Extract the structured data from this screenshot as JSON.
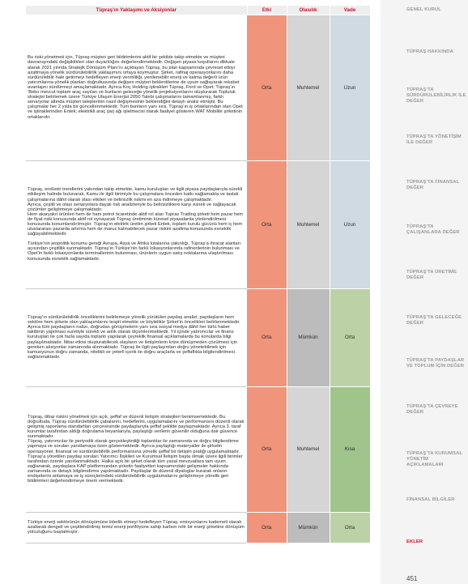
{
  "table": {
    "headers": {
      "approach": "Tüpraş’ın Yaklaşımı ve Aksiyonlar",
      "impact": "Etki",
      "likelihood": "Olasılık",
      "term": "Vade"
    },
    "rows": [
      {
        "paragraphs": [
          "Bu riski yönetmek için, Tüpraş müşteri geri bildirimlerini aktif bir şekilde takip etmekte ve müşteri davranışındaki değişiklikleri olan duyarlılığını değerlendirmektedir. Değişen piyasa koşullarını dikkate alarak 2021 yılında Stratejik Dönüşüm Planı’nı açıklayan Tüpraş, bu plan kapsamında çevresel etkiyi azaltmaya yönelik sürdürülebilirlik yaklaşımını ortaya koymuştur. Şirket, rafinaj operasyonlarını daha sürdürülebilir hale getirmeyi hedefleyen enerji verimliliği, yenilenebilir enerji ve katma değerli ürün yatırımlarına yönelik planları doğrultusunda değişen müşteri beklentilerine de uyum sağlayarak rekabet avantajını sürdürmeyi amaçlamaktadır. Ayrıca Koç Holding iştirakleri Tüpraş, Ford ve Opet; Tüpraş’ın ‘Beko mevcut toplam araç sayıları ve bunların geleceğe yönelik projeksiyonlarını oluşturarak Topluluk stratejisi belirlemek üzere Türkiye Ulaşım Enerjisi 2050 Talebi çalışmalarını tamamlanmış, farklı senaryolar altında müşteri taleplerinin nasıl değişmesinin beklendiğini detaylı analiz etmiştir. Bu çalışmalar her 2 yılda bir güncellenmektedir. Tüm bunların yanı sıra, Tüpraş’ın iş ortaklarından olan Opet ve iştiraklerinden Entek; elektrikli araç şarj ağı işletmecisi olarak faaliyet gösteren WAT Mobilite şirketinin ortaklarıdır."
        ],
        "impact": "Orta",
        "likelihood": "Muhtemel",
        "term": "Uzun"
      },
      {
        "paragraphs": [
          "Tüpraş, endüstri trendlerini yakından takip etmekte, kamu kuruluşları ve ilgili piyasa paydaşlarıyla sürekli etkileşim halinde bulunarak, Kamu ile ilgili birimiyle bu çalışmalara önceden katkı sağlamakta ve taslak çalışmalarına dâhil olarak olası etkileri ve belirsizlik riskini en aza indirmeye çalışmaktadır.",
          "Ayrıca, çeşitli ve olası senaryolara dayalı risk analizleriyle bu belirsizliklere karşı esnek ve sağlayacak çözümler geliştirmeye çalışmaktadır.",
          "Hem akaryakıt ürünleri hem de ham petrol ticaretinde aktif rol alan Tupras Trading şirketi hem pazar hem de fiyat riski konusunda aktif rol oynayarak Tüpraş üretiminin küresel piyasalarda yönlendirilmesi konusunda konumlandırılmıştır. Tüpraş’ın elektrik üretim şirketi Entek, toplam kurulu gücünü hem iç hem uluslararası pazarda artırma hem de maruz kalınabilecek pazar riskini azaltma konusunda esneklik sağlayabilmektedir.",
          "Türkiye’nin jeopolitik konumu gereği Avrupa, Asya ve Afrika kıtalarına yakınlığı, Tüpraş’a ihracat alanları açısından çeşitlilik sunmaktadır. Tüpraş’ın Türkiye’nin farklı lokasyonlarında rafinerilerinin bulunması ve Opet’in farklı lokasyonlarda terminallerinin bulunması, ürünlerin uygun satış noktalarına ulaştırılması konusunda esneklik sağlamaktadır."
        ],
        "impact": "Orta",
        "likelihood": "Muhtemel",
        "term": "Uzun"
      },
      {
        "paragraphs": [
          "Tüpraş’ın sürdürülebilirlik önceliklerini belirlemeye yönelik yürütülen paydaş analizi; paydaşların hem sektöre hem şirkete olan yaklaşımlarını tespit etmekte ve böylelikle Şirket’in öncelikleri belirlenmektedir. Ayrıca tüm paydaşların nabzı, doğrudan görüşmelerin yanı sıra sosyal medya dâhil her türlü haber takibinin yapılması suretiyle sürekli ve anlık olarak ölçümlenmektedir. Yıl içinde yatırımcılar ve finans kuruluşları ile çok fazla sayıda toplantı yapılarak çeyreklik finansal açıklamalarda bu konularda bilgi paylaşılmaktadır. İtibar etkisi oluşturabilecek olayların ve iletişimlerin krize dönüşmeden çözülmesi için gereken aksiyonlar zamanında alınmaktadır. Tüpraş ile ilgili paylaşımları doğru yönetebilmek için kamuoyunun doğru zamanda, nitelikli ve yeterli içerik ile doğru araçlarla ve şeffaflıkla bilgilendirilmesi sağlanmaktadır."
        ],
        "impact": "Orta",
        "likelihood": "Mümkün",
        "term": "Orta"
      },
      {
        "paragraphs": [
          "Tüpraş, itibar riskini yönetmek için açık, şeffaf ve düzenli iletişim stratejileri benimsemektedir. Bu doğrultuda, Tüpraş sürdürülebilirlik çabalarını, hedeflerini, uygulamalarını ve performansını düzenli olarak gelişmiş raporlama standartları çerçevesinde paydaşlarıyla şeffaf şekilde paylaşmaktadır. Ayrıca 3. taraf kurumlar tarafından aldığı doğrulama beyanlarıyla, paylaştığı verilerin güvenilir olduğuna dair güvence sunmaktadır.",
          "Tüpraş, yatırımcılar ile periyodik olarak gerçekleştirdiği toplantılar ile zamanında ve doğru bilgilendirme yapmaya ve soruları yanıtlamaya özen göstermektedir. Ayrıca paylaştığı materyaller ile şirketin operasyonel, finansal ve sürdürülebilirlik performansına yönelik şeffaf bir iletişim pratiği uygulamaktadır. Tüpraş’a yönetilen paydaş soruları Yatırımcı İlişkileri ve Kurumsal İletişim başta olmak üzere ilgili birimler tarafından özenle yanıtlanmaktadır. Halka açık bir şirket olarak tüm yasal mevzuatlara tam uyum sağlanarak, paydaşlara KAP platformundan şirketin faaliyetleri kapsamındaki gelişmeler hakkında zamanında ve detaylı bilgilendirme yapılmaktadır. Paydaşlar ile düzenli diyaloglar kurarak onların endişelerini anlamaya ve iş süreçlerindeki sürdürülebilirlik uygulamalarını geliştirmeye yönelik geri bildirimleri değerlendirmeye önem vermektedir."
        ],
        "impact": "Orta",
        "likelihood": "Muhtemel",
        "term": "Kısa"
      },
      {
        "paragraphs": [
          "Türkiye enerji sektörünün dönüşümüne liderlik etmeyi hedefleyen Tüpraş; emisyonlarını kademeli olarak azaltarak dengeli ve çeşitlendirilmiş temiz enerji portföyüne sahip karbon nötr bir enerji şirketine dönüşüm yolculuğunu başlatmıştır."
        ],
        "impact": "Orta",
        "likelihood": "Mümkün",
        "term": "Orta"
      }
    ]
  },
  "sidebar": {
    "items": [
      "GENEL KURUL",
      "TÜPRAŞ HAKKINDA",
      "TÜPRAŞ’TA SÜRDÜRÜLEBİLİRLİK İLE DEĞER",
      "TÜPRAŞ’TA YÖNETİŞİM İLE DEĞER",
      "TÜPRAŞ’TA FİNANSAL DEĞER",
      "TÜPRAŞ’TA ÇALIŞANLARA DEĞER",
      "TÜPRAŞ’TA ÜRETİME DEĞER",
      "TÜPRAŞ’TA GELECEĞE DEĞER",
      "TÜPRAŞ’TA PAYDAŞLAR VE TOPLUM İÇİN DEĞER",
      "TÜPRAŞ’TA ÇEVREYE DEĞER",
      "TÜPRAŞ’TA KURUMSAL YÖNETİM AÇIKLAMALARI",
      "FİNANSAL BİLGİLER",
      "EKLER"
    ],
    "active": "EKLER"
  },
  "page_number": "451"
}
